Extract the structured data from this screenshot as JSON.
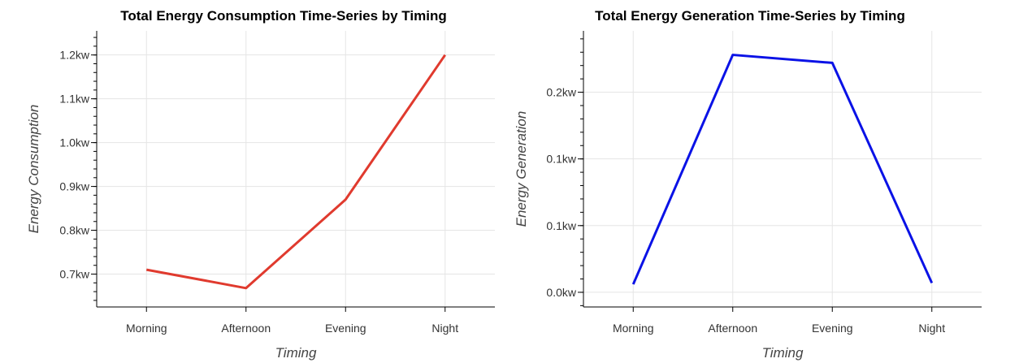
{
  "chart_data": [
    {
      "type": "line",
      "title": "Total Energy Consumption Time-Series by Timing",
      "xlabel": "Timing",
      "ylabel": "Energy Consumption",
      "categories": [
        "Morning",
        "Afternoon",
        "Evening",
        "Night"
      ],
      "values": [
        0.71,
        0.668,
        0.87,
        1.2
      ],
      "ylim": [
        0.625,
        1.255
      ],
      "yticks": [
        0.7,
        0.8,
        0.9,
        1.0,
        1.1,
        1.2
      ],
      "ytick_labels": [
        "0.7kw",
        "0.8kw",
        "0.9kw",
        "1.0kw",
        "1.1kw",
        "1.2kw"
      ],
      "color": "#e03a2e",
      "grid": true
    },
    {
      "type": "line",
      "title": "Total Energy Generation Time-Series by Timing",
      "xlabel": "Timing",
      "ylabel": "Energy Generation",
      "categories": [
        "Morning",
        "Afternoon",
        "Evening",
        "Night"
      ],
      "values": [
        0.006,
        0.178,
        0.172,
        0.007
      ],
      "ylim": [
        -0.011,
        0.196
      ],
      "yticks": [
        0.0,
        0.05,
        0.1,
        0.15
      ],
      "ytick_labels": [
        "0.0kw",
        "0.1kw",
        "0.1kw",
        "0.2kw"
      ],
      "color": "#0a12e6",
      "grid": true
    }
  ]
}
